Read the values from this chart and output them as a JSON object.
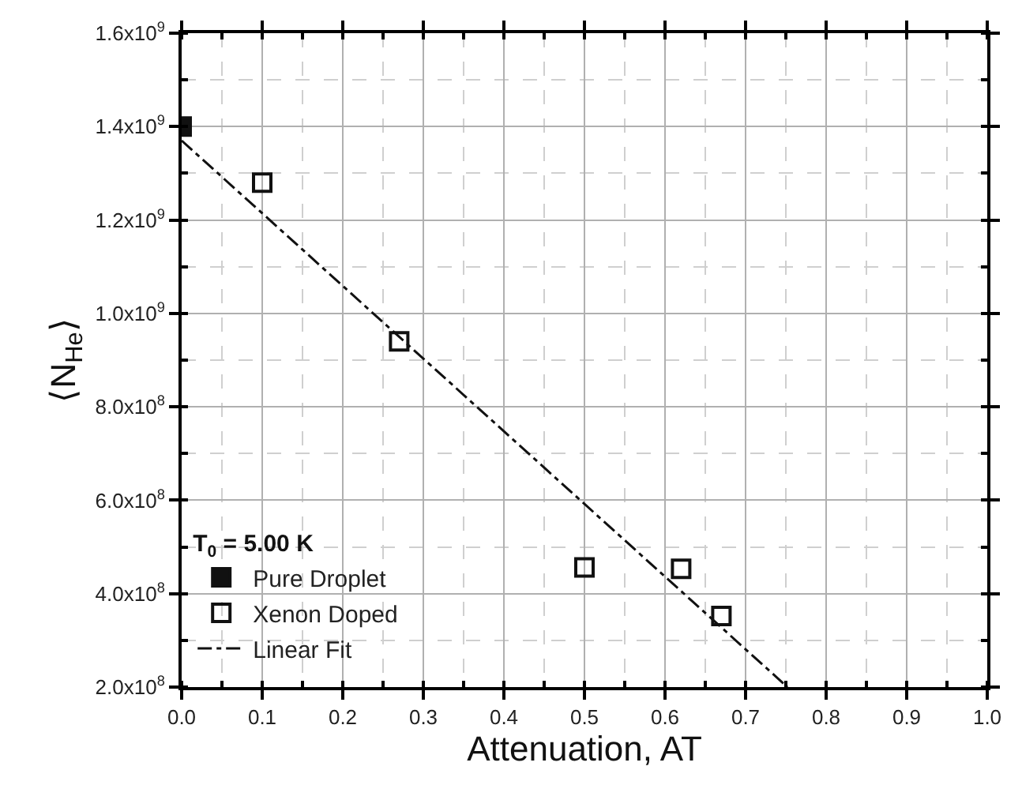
{
  "chart_data": {
    "type": "scatter",
    "xlabel": "Attenuation, AT",
    "ylabel": "⟨N$_{He}$⟩",
    "legend_title": "T$_{0}$ = 5.00 K",
    "xlim": [
      0,
      1.0
    ],
    "xticks": [
      {
        "value": 0,
        "label": "0.0"
      },
      0.1,
      0.2,
      0.3,
      0.4,
      0.5,
      0.6,
      0.7,
      0.8,
      0.9,
      {
        "value": 1.0,
        "label": "1.0"
      }
    ],
    "ylim": [
      200000000,
      1600000000
    ],
    "yticks": [
      {
        "value": 200000000,
        "label": "2.0x10$^{8}$"
      },
      {
        "value": 400000000,
        "label": "4.0x10$^{8}$"
      },
      {
        "value": 600000000,
        "label": "6.0x10$^{8}$"
      },
      {
        "value": 800000000,
        "label": "8.0x10$^{8}$"
      },
      {
        "value": 1000000000,
        "label": "1.0x10$^{9}$"
      },
      {
        "value": 1200000000,
        "label": "1.2x10$^{9}$"
      },
      {
        "value": 1400000000,
        "label": "1.4x10$^{9}$"
      },
      {
        "value": 1600000000,
        "label": "1.6x10$^{9}$"
      }
    ],
    "grid": true,
    "legend": "bottom left",
    "series": [
      {
        "name": "Pure Droplet",
        "marker": "square",
        "color": "#111111",
        "x": [
          0.0
        ],
        "values": [
          1400000000
        ]
      },
      {
        "name": "Xenon Doped",
        "marker": "square-open",
        "color": "#111111",
        "x": [
          0.1,
          0.27,
          0.5,
          0.62,
          0.67
        ],
        "values": [
          1280000000,
          940000000,
          456000000,
          453000000,
          352000000
        ]
      },
      {
        "name": "Linear Fit",
        "type": "line",
        "marker": "none",
        "line_style": "dashdot",
        "color": "#111111",
        "x": [
          0.0,
          0.752
        ],
        "values": [
          1370000000,
          200000000
        ]
      }
    ]
  }
}
